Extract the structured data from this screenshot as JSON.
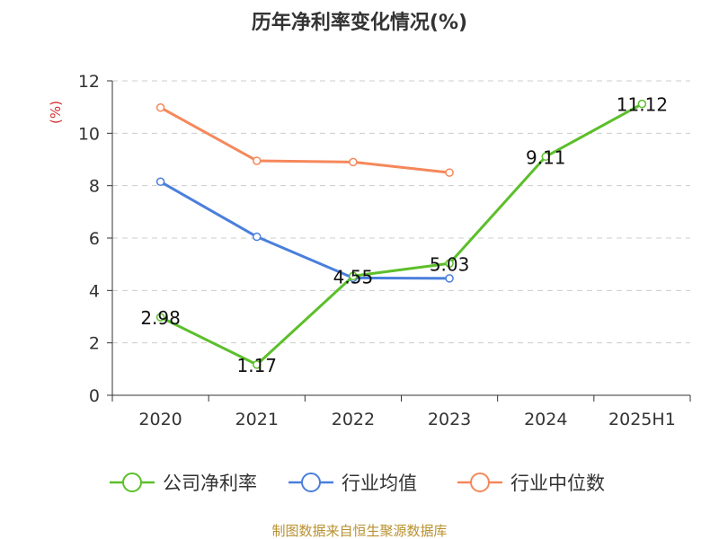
{
  "chart_data": {
    "type": "line",
    "title": "历年净利率变化情况(%)",
    "ylabel": "(%)",
    "categories": [
      "2020",
      "2021",
      "2022",
      "2023",
      "2024",
      "2025H1"
    ],
    "ylim": [
      0,
      12
    ],
    "yticks": [
      "0",
      "2",
      "4",
      "6",
      "8",
      "10",
      "12"
    ],
    "grid": true,
    "legend_position": "bottom",
    "series": [
      {
        "name": "公司净利率",
        "color": "#5cbf2a",
        "values": [
          2.98,
          1.17,
          4.55,
          5.03,
          9.11,
          11.12
        ],
        "labels": [
          "2.98",
          "1.17",
          "4.55",
          "5.03",
          "9.11",
          "11.12"
        ]
      },
      {
        "name": "行业均值",
        "color": "#4a7fdc",
        "values": [
          8.15,
          6.05,
          4.48,
          4.46,
          null,
          null
        ]
      },
      {
        "name": "行业中位数",
        "color": "#f5885b",
        "values": [
          10.98,
          8.95,
          8.9,
          8.5,
          null,
          null
        ]
      }
    ],
    "source": "制图数据来自恒生聚源数据库"
  }
}
